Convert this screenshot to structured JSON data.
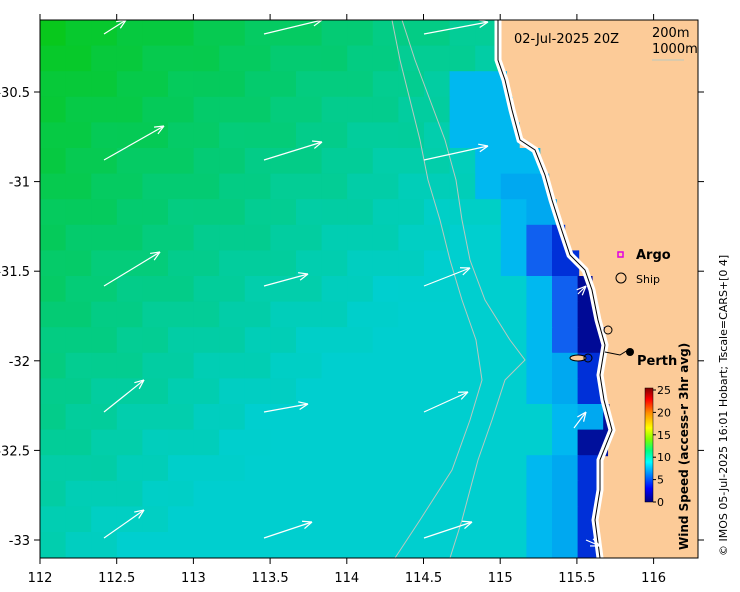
{
  "map": {
    "timestamp": "02-Jul-2025 20Z",
    "contour_labels": [
      "200m",
      "1000m"
    ],
    "longitude_ticks": [
      "112",
      "112.5",
      "113",
      "113.5",
      "114",
      "114.5",
      "115",
      "115.5",
      "116"
    ],
    "latitude_ticks": [
      "-30.5",
      "-31",
      "-31.5",
      "-32",
      "-32.5",
      "-33"
    ],
    "places": {
      "argo": "Argo",
      "ship": "Ship",
      "perth": "Perth"
    },
    "colorbar": {
      "title": "Wind Speed (access-r 3hr avg)",
      "ticks": [
        "25",
        "20",
        "15",
        "10",
        "5",
        "0"
      ]
    },
    "credit": "© IMOS 05-Jul-2025 16:01 Hobart; Tscale=CARS+[0 4]",
    "colors": {
      "land": "#fccb98",
      "ocean_high": "#08c81c",
      "ocean_mid": "#00cfcf",
      "ocean_low": "#0010a0",
      "argo_marker": "#e000e0"
    }
  }
}
